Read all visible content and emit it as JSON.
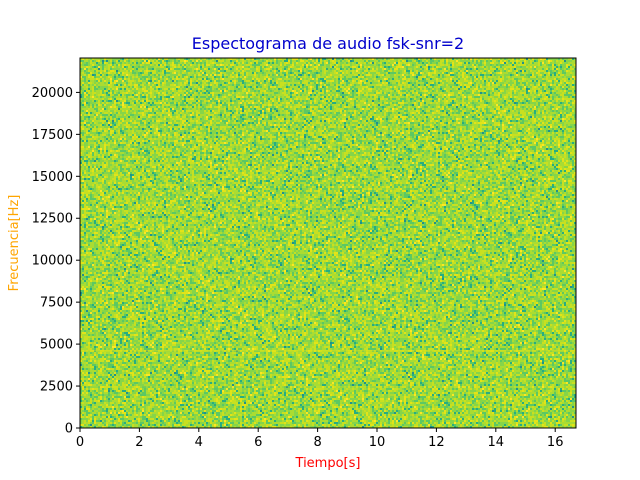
{
  "chart_data": {
    "type": "heatmap",
    "title": "Espectograma de audio fsk-snr=2",
    "xlabel": "Tiempo[s]",
    "ylabel": "Frecuencia[Hz]",
    "xlim": [
      0,
      16.7
    ],
    "ylim": [
      0,
      22050
    ],
    "x_ticks": [
      0,
      2,
      4,
      6,
      8,
      10,
      12,
      14,
      16
    ],
    "x_tick_labels": [
      "0",
      "2",
      "4",
      "6",
      "8",
      "10",
      "12",
      "14",
      "16"
    ],
    "y_ticks": [
      0,
      2500,
      5000,
      7500,
      10000,
      12500,
      15000,
      17500,
      20000
    ],
    "y_tick_labels": [
      "0",
      "2500",
      "5000",
      "7500",
      "10000",
      "12500",
      "15000",
      "17500",
      "20000"
    ],
    "grid": false,
    "colormap": "viridis",
    "tone_bands_hz": [
      4600,
      2450
    ],
    "colors": {
      "title": "#0000cc",
      "xlabel": "#ff0000",
      "ylabel": "#ffa500",
      "base_fill": "#9ccf3a",
      "dense": "#2fb47c",
      "bright": "#e2e418"
    }
  }
}
